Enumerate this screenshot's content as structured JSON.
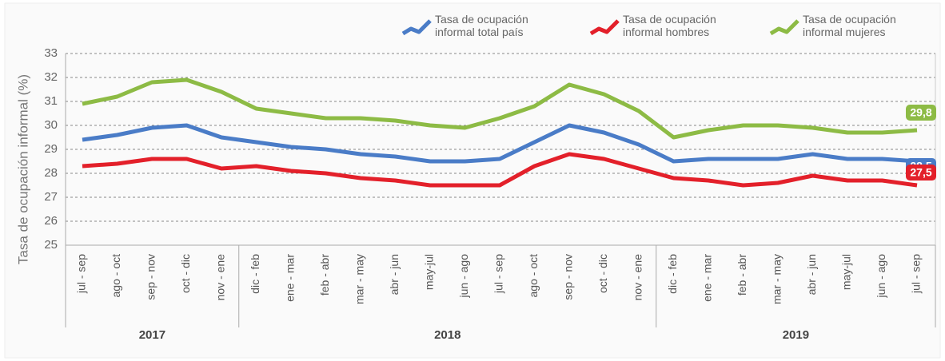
{
  "chart_data": {
    "type": "line",
    "ylabel": "Tasa de ocupación informal (%)",
    "groups": [
      {
        "label": "2017",
        "categories": [
          "jul - sep",
          "ago - oct",
          "sep - nov",
          "oct - dic",
          "nov - ene"
        ]
      },
      {
        "label": "2018",
        "categories": [
          "dic - feb",
          "ene - mar",
          "feb - abr",
          "mar - may",
          "abr - jun",
          "may-jul",
          "jun - ago",
          "jul - sep",
          "ago - oct",
          "sep - nov",
          "oct - dic",
          "nov - ene"
        ]
      },
      {
        "label": "2019",
        "categories": [
          "dic - feb",
          "ene - mar",
          "feb - abr",
          "mar - may",
          "abr - jun",
          "may-jul",
          "jun - ago",
          "jul - sep"
        ]
      }
    ],
    "series": [
      {
        "name": "Tasa de ocupación informal total país",
        "color": "#4a7cc7",
        "values": [
          29.4,
          29.6,
          29.9,
          30.0,
          29.5,
          29.3,
          29.1,
          29.0,
          28.8,
          28.7,
          28.5,
          28.5,
          28.6,
          29.3,
          30.0,
          29.7,
          29.2,
          28.5,
          28.6,
          28.6,
          28.6,
          28.8,
          28.6,
          28.6,
          28.5
        ],
        "value_labels": [
          null,
          null,
          null,
          null,
          null,
          null,
          null,
          null,
          null,
          null,
          null,
          null,
          null,
          null,
          null,
          null,
          null,
          null,
          null,
          null,
          null,
          null,
          null,
          null,
          "28,5"
        ]
      },
      {
        "name": "Tasa de ocupación informal hombres",
        "color": "#e3202a",
        "values": [
          28.3,
          28.4,
          28.6,
          28.6,
          28.2,
          28.3,
          28.1,
          28.0,
          27.8,
          27.7,
          27.5,
          27.5,
          27.5,
          28.3,
          28.8,
          28.6,
          28.2,
          27.8,
          27.7,
          27.5,
          27.6,
          27.9,
          27.7,
          27.7,
          27.5
        ],
        "value_labels": [
          null,
          null,
          null,
          null,
          null,
          null,
          null,
          null,
          null,
          null,
          null,
          null,
          null,
          null,
          null,
          null,
          null,
          null,
          null,
          null,
          null,
          null,
          null,
          null,
          "27,5"
        ]
      },
      {
        "name": "Tasa de ocupación informal mujeres",
        "color": "#8dbb45",
        "values": [
          30.9,
          31.2,
          31.8,
          31.9,
          31.4,
          30.7,
          30.5,
          30.3,
          30.3,
          30.2,
          30.0,
          29.9,
          30.3,
          30.8,
          31.7,
          31.3,
          30.6,
          29.5,
          29.8,
          30.0,
          30.0,
          29.9,
          29.7,
          29.7,
          29.8
        ],
        "value_labels": [
          null,
          null,
          null,
          null,
          null,
          null,
          null,
          null,
          null,
          null,
          null,
          null,
          null,
          null,
          null,
          null,
          null,
          null,
          null,
          null,
          null,
          null,
          null,
          null,
          "29,8"
        ]
      }
    ],
    "ylim": [
      25,
      33
    ],
    "yticks": [
      25,
      26,
      27,
      28,
      29,
      30,
      31,
      32,
      33
    ],
    "grid": true
  }
}
